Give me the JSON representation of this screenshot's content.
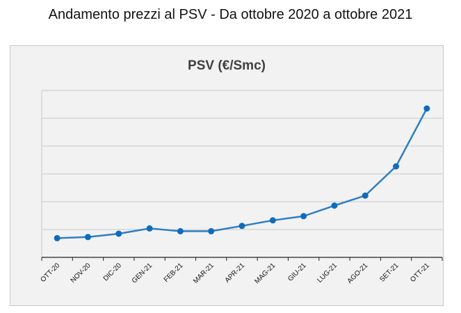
{
  "title": "Andamento prezzi al PSV - Da ottobre 2020 a ottobre 2021",
  "chart_data": {
    "type": "line",
    "title": "PSV (€/Smc)",
    "xlabel": "",
    "ylabel": "",
    "categories": [
      "OTT-20",
      "NOV-20",
      "DIC-20",
      "GEN-21",
      "FEB-21",
      "MAR-21",
      "APR-21",
      "MAG-21",
      "GIU-21",
      "LUG-21",
      "AGO-21",
      "SET-21",
      "OTT-21"
    ],
    "series": [
      {
        "name": "PSV",
        "values": [
          0.69,
          0.73,
          0.85,
          1.04,
          0.94,
          0.94,
          1.13,
          1.33,
          1.48,
          1.86,
          2.22,
          3.27,
          5.35
        ]
      }
    ],
    "ylim": [
      0,
      6
    ],
    "gridstep": 1,
    "grid": true,
    "y_tick_labels_shown": false,
    "line_color": "#2e7fc1",
    "marker_color": "#0f6cbd"
  }
}
